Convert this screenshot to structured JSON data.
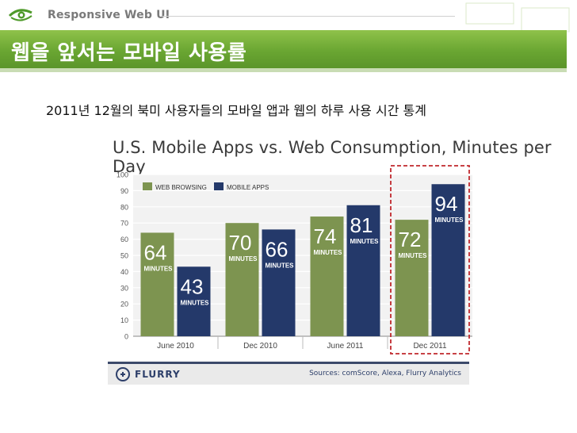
{
  "header": {
    "brand": "Responsive Web UI",
    "title": "웹을 앞서는 모바일 사용률",
    "subtitle": "2011년 12월의 북미 사용자들의 모바일 앱과 웹의 하루 사용 시간 통계"
  },
  "colors": {
    "title_band": "#6aa632",
    "web_bar": "#7d9450",
    "app_bar": "#24396a",
    "highlight": "#c0282d"
  },
  "chart_data": {
    "type": "bar",
    "title": "U.S. Mobile Apps vs. Web Consumption, Minutes per Day",
    "categories": [
      "June 2010",
      "Dec 2010",
      "June 2011",
      "Dec 2011"
    ],
    "series": [
      {
        "name": "WEB BROWSING",
        "values": [
          64,
          70,
          74,
          72
        ],
        "color": "#7d9450"
      },
      {
        "name": "MOBILE APPS",
        "values": [
          43,
          66,
          81,
          94
        ],
        "color": "#24396a"
      }
    ],
    "value_unit_label": "MINUTES",
    "ylim": [
      0,
      100
    ],
    "yticks": [
      0,
      10,
      20,
      30,
      40,
      50,
      60,
      70,
      80,
      90,
      100
    ],
    "grid": true,
    "legend": "top-left",
    "highlighted_category": "Dec 2011"
  },
  "footer": {
    "logo_text": "FLURRY",
    "sources": "Sources: comScore, Alexa, Flurry Analytics"
  }
}
